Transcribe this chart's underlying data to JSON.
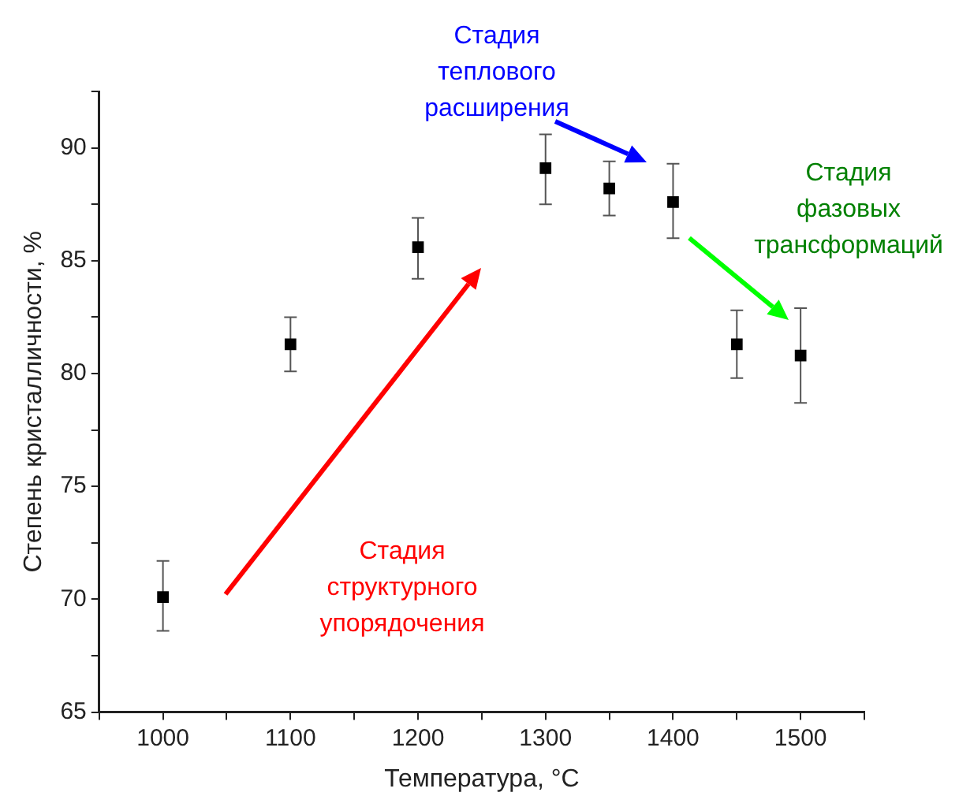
{
  "chart_data": {
    "type": "scatter",
    "xlabel": "Температура, °C",
    "ylabel": "Степень кристалличности, %",
    "x": [
      1000,
      1100,
      1200,
      1300,
      1350,
      1400,
      1450,
      1500
    ],
    "series": [
      {
        "color": "#000000",
        "values": [
          70.1,
          81.3,
          85.6,
          89.1,
          88.2,
          87.6,
          81.3,
          80.8
        ],
        "errors": [
          [
            68.6,
            71.7
          ],
          [
            80.1,
            82.5
          ],
          [
            84.2,
            86.9
          ],
          [
            87.5,
            90.6
          ],
          [
            87.0,
            89.4
          ],
          [
            86.0,
            89.3
          ],
          [
            79.8,
            82.8
          ],
          [
            78.7,
            82.9
          ]
        ]
      }
    ],
    "marker": "square",
    "grid": false,
    "legend": false,
    "xlim": [
      950,
      1550
    ],
    "xticks": [
      {
        "value": 950,
        "label": null
      },
      1000,
      {
        "value": 1050,
        "label": null
      },
      1100,
      {
        "value": 1150,
        "label": null
      },
      1200,
      {
        "value": 1250,
        "label": null
      },
      1300,
      {
        "value": 1350,
        "label": null
      },
      1400,
      {
        "value": 1450,
        "label": null
      },
      1500,
      {
        "value": 1550,
        "label": null
      }
    ],
    "ylim": [
      65,
      92.5
    ],
    "yticks": [
      65,
      {
        "value": 67.5,
        "label": null
      },
      70,
      {
        "value": 72.5,
        "label": null
      },
      75,
      {
        "value": 77.5,
        "label": null
      },
      80,
      {
        "value": 82.5,
        "label": null
      },
      85,
      {
        "value": 87.5,
        "label": null
      },
      90,
      {
        "value": 92.5,
        "label": null
      }
    ],
    "annotations": [
      "Стадия\nструктурного\nупорядочения",
      "Стадия\nтеплового\nрасширения",
      "Стадия\nфазовых\nтрансформаций"
    ]
  }
}
